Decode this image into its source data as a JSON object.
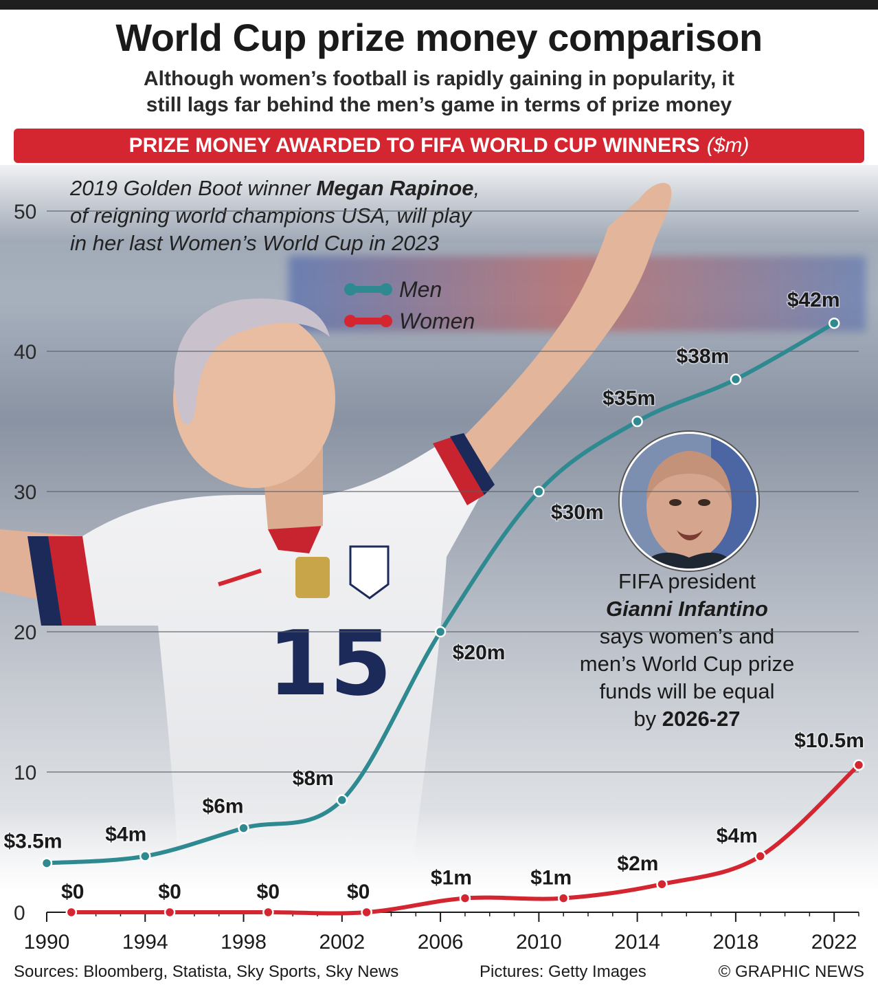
{
  "title": "World Cup prize money comparison",
  "subtitle_line1": "Although women’s football is rapidly gaining in popularity, it",
  "subtitle_line2": "still lags far behind the men’s game in terms of prize money",
  "banner": {
    "text": "PRIZE MONEY AWARDED TO FIFA WORLD CUP WINNERS",
    "unit": "($m)"
  },
  "caption": {
    "line1_pre": "2019 Golden Boot winner ",
    "line1_bold": "Megan Rapinoe",
    "line1_post": ",",
    "line2": "of reigning world champions USA, will play",
    "line3": "in her last Women’s World Cup in 2023"
  },
  "player_jersey_number": "15",
  "quote": {
    "line1": "FIFA president",
    "name": "Gianni Infantino",
    "line3": "says women’s and",
    "line4": "men’s World Cup prize",
    "line5": "funds will be equal",
    "line6_pre": "by ",
    "line6_bold": "2026-27"
  },
  "footer": {
    "sources": "Sources: Bloomberg, Statista, Sky Sports, Sky News",
    "pictures": "Pictures: Getty Images",
    "credit": "© GRAPHIC NEWS"
  },
  "colors": {
    "men": "#2e8a90",
    "women": "#d42630",
    "banner": "#d42630"
  },
  "chart_data": {
    "type": "line",
    "title": "PRIZE MONEY AWARDED TO FIFA WORLD CUP WINNERS ($m)",
    "ylim": [
      0,
      50
    ],
    "yticks": [
      0,
      10,
      20,
      30,
      40,
      50
    ],
    "ytick_labels": [
      "0",
      "10",
      "20",
      "30",
      "40",
      "50"
    ],
    "xticks": [
      1990,
      1994,
      1998,
      2002,
      2006,
      2010,
      2014,
      2018,
      2022
    ],
    "xtick_labels": [
      "1990",
      "1994",
      "1998",
      "2002",
      "2006",
      "2010",
      "2014",
      "2018",
      "2022"
    ],
    "xlim": [
      1990,
      2023
    ],
    "grid": true,
    "legend": "top-center",
    "series": [
      {
        "name": "Men",
        "x": [
          1990,
          1994,
          1998,
          2002,
          2006,
          2010,
          2014,
          2018,
          2022
        ],
        "values": [
          3.5,
          4,
          6,
          8,
          20,
          30,
          35,
          38,
          42
        ],
        "labels": [
          "$3.5m",
          "$4m",
          "$6m",
          "$8m",
          "$20m",
          "$30m",
          "$35m",
          "$38m",
          "$42m"
        ]
      },
      {
        "name": "Women",
        "x": [
          1991,
          1995,
          1999,
          2003,
          2007,
          2011,
          2015,
          2019,
          2023
        ],
        "values": [
          0,
          0,
          0,
          0,
          1,
          1,
          2,
          4,
          10.5
        ],
        "labels": [
          "$0",
          "$0",
          "$0",
          "$0",
          "$1m",
          "$1m",
          "$2m",
          "$4m",
          "$10.5m"
        ]
      }
    ]
  }
}
